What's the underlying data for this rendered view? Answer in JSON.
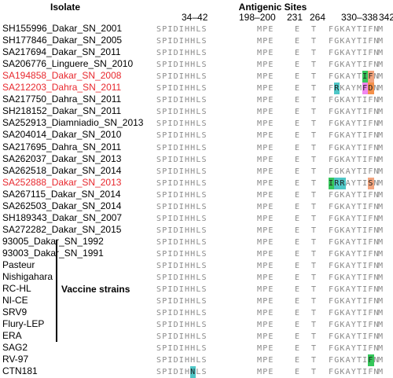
{
  "headers": {
    "isolate": "Isolate",
    "antigenic_sites": "Antigenic Sites"
  },
  "site_ranges": [
    "34–42",
    "198–200",
    "231",
    "264",
    "330–338",
    "342"
  ],
  "vaccine_label": "Vaccine strains",
  "colors": {
    "red_text": "#e8282e",
    "green": "#35c75a",
    "teal": "#4fc7c7",
    "pink": "#f086f0",
    "salmon": "#f2a47e",
    "orange": "#f4904a"
  },
  "rows": [
    {
      "name": "SH155996_Dakar_SN_2001",
      "red": false,
      "s1": "SPIDIHHLS",
      "s2": "MPE",
      "s3": "E",
      "s4": "T",
      "s5": "FGKAYTIFN",
      "s6": "M"
    },
    {
      "name": "SH177846_Dakar_SN_2005",
      "red": false,
      "s1": "SPIDIHHLS",
      "s2": "MPE",
      "s3": "E",
      "s4": "T",
      "s5": "FGKAYTIFN",
      "s6": "M"
    },
    {
      "name": "SA217694_Dakar_SN_2011",
      "red": false,
      "s1": "SPIDIHHLS",
      "s2": "MPE",
      "s3": "E",
      "s4": "T",
      "s5": "FGKAYTIFN",
      "s6": "M"
    },
    {
      "name": "SA206776_Linguere_SN_2010",
      "red": false,
      "s1": "SPIDIHHLS",
      "s2": "MPE",
      "s3": "E",
      "s4": "T",
      "s5": "FGKAYTIFN",
      "s6": "M"
    },
    {
      "name": "SA194858_Dakar_SN_2008",
      "red": true,
      "s1": "SPIDIHHLS",
      "s2": "MPE",
      "s3": "E",
      "s4": "T",
      "s5": "FGKAYTIFN",
      "s6": "M"
    },
    {
      "name": "SA212203_Dahra_SN_2011",
      "red": true,
      "s1": "SPIDIHHLS",
      "s2": "MPE",
      "s3": "E",
      "s4": "T",
      "s5": "FRKAYMFDN",
      "s6": "M"
    },
    {
      "name": "SA217750_Dahra_SN_2011",
      "red": false,
      "s1": "SPIDIHHLS",
      "s2": "MPE",
      "s3": "E",
      "s4": "T",
      "s5": "FGKAYTIFN",
      "s6": "M"
    },
    {
      "name": "SH218152_Dakar_SN_2011",
      "red": false,
      "s1": "SPIDIHHLS",
      "s2": "MPE",
      "s3": "E",
      "s4": "T",
      "s5": "FGKAYTIFN",
      "s6": "M"
    },
    {
      "name": "SA252913_Diamniadio_SN_2013",
      "red": false,
      "s1": "SPIDIHHLS",
      "s2": "MPE",
      "s3": "E",
      "s4": "T",
      "s5": "FGKAYTIFN",
      "s6": "M"
    },
    {
      "name": "SA204014_Dakar_SN_2010",
      "red": false,
      "s1": "SPIDIHHLS",
      "s2": "MPE",
      "s3": "E",
      "s4": "T",
      "s5": "FGKAYTIFN",
      "s6": "M"
    },
    {
      "name": "SA217695_Dahra_SN_2011",
      "red": false,
      "s1": "SPIDIHHLS",
      "s2": "MPE",
      "s3": "E",
      "s4": "T",
      "s5": "FGKAYTIFN",
      "s6": "M"
    },
    {
      "name": "SA262037_Dakar_SN_2013",
      "red": false,
      "s1": "SPIDIHHLS",
      "s2": "MPE",
      "s3": "E",
      "s4": "T",
      "s5": "FGKAYTIFN",
      "s6": "M"
    },
    {
      "name": "SA262518_Dakar_SN_2014",
      "red": false,
      "s1": "SPIDIHHLS",
      "s2": "MPE",
      "s3": "E",
      "s4": "T",
      "s5": "FGKAYTIFN",
      "s6": "M"
    },
    {
      "name": "SA252888_Dakar_SN_2013",
      "red": true,
      "s1": "SPIDIHHLS",
      "s2": "MPE",
      "s3": "E",
      "s4": "T",
      "s5": "IRRAYTISN",
      "s6": "M"
    },
    {
      "name": "SA267115_Dakar_SN_2014",
      "red": false,
      "s1": "SPIDIHHLS",
      "s2": "MPE",
      "s3": "E",
      "s4": "T",
      "s5": "FGKAYTIFN",
      "s6": "M"
    },
    {
      "name": "SA262503_Dakar_SN_2014",
      "red": false,
      "s1": "SPIDIHHLS",
      "s2": "MPE",
      "s3": "E",
      "s4": "T",
      "s5": "FGKAYTIFN",
      "s6": "M"
    },
    {
      "name": "SH189343_Dakar_SN_2007",
      "red": false,
      "s1": "SPIDIHHLS",
      "s2": "MPE",
      "s3": "E",
      "s4": "T",
      "s5": "FGKAYTIFN",
      "s6": "M"
    },
    {
      "name": "SA272282_Dakar_SN_2015",
      "red": false,
      "s1": "SPIDIHHLS",
      "s2": "MPE",
      "s3": "E",
      "s4": "T",
      "s5": "FGKAYTIFN",
      "s6": "M"
    },
    {
      "name": "93005_Dakar_SN_1992",
      "red": false,
      "s1": "SPIDIHHLS",
      "s2": "MPE",
      "s3": "E",
      "s4": "T",
      "s5": "FGKAYTIFN",
      "s6": "M"
    },
    {
      "name": "93003_Dakar_SN_1991",
      "red": false,
      "s1": "SPIDIHHLS",
      "s2": "MPE",
      "s3": "E",
      "s4": "T",
      "s5": "FGKAYTIFN",
      "s6": "M"
    },
    {
      "name": "Pasteur",
      "red": false,
      "s1": "SPIDIHHLS",
      "s2": "MPE",
      "s3": "E",
      "s4": "T",
      "s5": "FGKAYTIFN",
      "s6": "M"
    },
    {
      "name": "Nishigahara",
      "red": false,
      "s1": "SPIDIHHLS",
      "s2": "MPE",
      "s3": "E",
      "s4": "T",
      "s5": "FGKAYTIFN",
      "s6": "M"
    },
    {
      "name": "RC-HL",
      "red": false,
      "s1": "SPIDIHHLS",
      "s2": "MPE",
      "s3": "E",
      "s4": "T",
      "s5": "FGKAYTIFN",
      "s6": "M"
    },
    {
      "name": "NI-CE",
      "red": false,
      "s1": "SPIDIHHLS",
      "s2": "MPE",
      "s3": "E",
      "s4": "T",
      "s5": "FGKAYTIFN",
      "s6": "M"
    },
    {
      "name": "SRV9",
      "red": false,
      "s1": "SPIDIHHLS",
      "s2": "MPE",
      "s3": "E",
      "s4": "T",
      "s5": "FGKAYTIFN",
      "s6": "M"
    },
    {
      "name": "Flury-LEP",
      "red": false,
      "s1": "SPIDIHHLS",
      "s2": "MPE",
      "s3": "E",
      "s4": "T",
      "s5": "FGKAYTIFN",
      "s6": "M"
    },
    {
      "name": "ERA",
      "red": false,
      "s1": "SPIDIHHLS",
      "s2": "MPE",
      "s3": "E",
      "s4": "T",
      "s5": "FGKAYTIFN",
      "s6": "M"
    },
    {
      "name": "SAG2",
      "red": false,
      "s1": "SPIDIHHLS",
      "s2": "MPE",
      "s3": "E",
      "s4": "T",
      "s5": "FGKAYTIFN",
      "s6": "M"
    },
    {
      "name": "RV-97",
      "red": false,
      "s1": "SPIDIHHLS",
      "s2": "MPE",
      "s3": "E",
      "s4": "T",
      "s5": "FGKAYTIFN",
      "s6": "M"
    },
    {
      "name": "CTN181",
      "red": false,
      "s1": "SPIDIHNLS",
      "s2": "MPE",
      "s3": "E",
      "s4": "T",
      "s5": "FGKAYTIFN",
      "s6": "M"
    }
  ],
  "highlights": [
    {
      "row": 4,
      "site": "s5",
      "pos": 6,
      "color": "green"
    },
    {
      "row": 4,
      "site": "s5",
      "pos": 7,
      "color": "salmon"
    },
    {
      "row": 5,
      "site": "s5",
      "pos": 1,
      "color": "teal"
    },
    {
      "row": 5,
      "site": "s5",
      "pos": 6,
      "color": "pink"
    },
    {
      "row": 5,
      "site": "s5",
      "pos": 7,
      "color": "orange"
    },
    {
      "row": 13,
      "site": "s5",
      "pos": 0,
      "color": "green"
    },
    {
      "row": 13,
      "site": "s5",
      "pos": 1,
      "color": "teal"
    },
    {
      "row": 13,
      "site": "s5",
      "pos": 2,
      "color": "teal"
    },
    {
      "row": 13,
      "site": "s5",
      "pos": 7,
      "color": "salmon"
    },
    {
      "row": 28,
      "site": "s5",
      "pos": 7,
      "color": "green"
    },
    {
      "row": 29,
      "site": "s1",
      "pos": 6,
      "color": "teal"
    }
  ]
}
